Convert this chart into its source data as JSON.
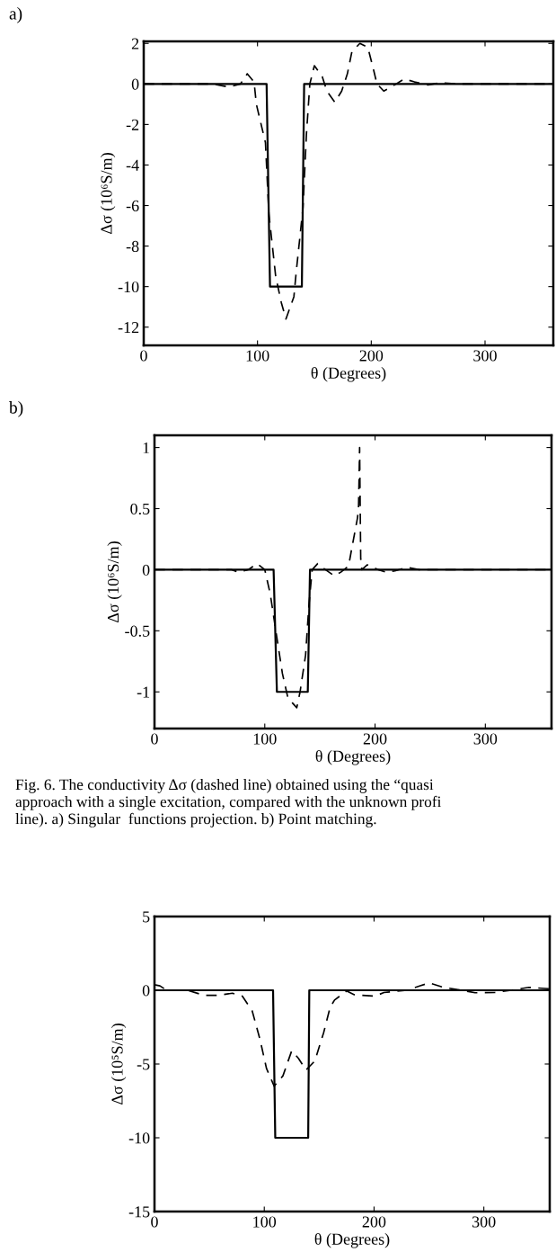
{
  "chart_data": [
    {
      "type": "line",
      "title": "a)",
      "xlabel": "θ (Degrees)",
      "ylabel": "Δσ (10⁶S/m)",
      "xlim": [
        0,
        360
      ],
      "xticks": [
        0,
        100,
        200,
        300
      ],
      "ylim": [
        -12.9,
        2.1
      ],
      "yticks": [
        -12,
        -10,
        -8,
        -6,
        -4,
        -2,
        0,
        2
      ],
      "grid": false,
      "legend": false,
      "marker": "none",
      "series": [
        {
          "color": "#000000",
          "line_style": "solid",
          "x": [
            0,
            108,
            111,
            139,
            141,
            360
          ],
          "values": [
            0,
            0,
            -10,
            -10,
            0,
            0
          ]
        },
        {
          "color": "#000000",
          "line_style": "dashed",
          "x": [
            0,
            50,
            60,
            75,
            85,
            91,
            97,
            99,
            107,
            110,
            116,
            121,
            125,
            132,
            134,
            140,
            143,
            146,
            150,
            157,
            161,
            168,
            174,
            179,
            183,
            190,
            197,
            202,
            205,
            211,
            219,
            229,
            238,
            250,
            260,
            280,
            360
          ],
          "values": [
            0,
            0,
            0,
            -0.15,
            0,
            0.5,
            0.1,
            -1,
            -2.9,
            -6.4,
            -9.5,
            -10.8,
            -11.6,
            -10.5,
            -9.3,
            -6.1,
            -2.5,
            0,
            0.9,
            0.35,
            -0.35,
            -0.9,
            -0.35,
            0.5,
            1.6,
            2.0,
            1.8,
            0.7,
            0,
            -0.35,
            -0.1,
            0.25,
            0.1,
            -0.05,
            0.05,
            0,
            0
          ]
        }
      ]
    },
    {
      "type": "line",
      "title": "b)",
      "xlabel": "θ (Degrees)",
      "ylabel": "Δσ (10⁶S/m)",
      "xlim": [
        0,
        360
      ],
      "xticks": [
        0,
        100,
        200,
        300
      ],
      "ylim": [
        -1.3,
        1.1
      ],
      "yticks": [
        -1,
        -0.5,
        0,
        0.5,
        1
      ],
      "grid": false,
      "legend": false,
      "marker": "none",
      "annotations": [
        "Fig. 6. The conductivity Δσ (dashed line) obtained using the “quasi\napproach with a single excitation, compared with the unknown profi\nline). a) Singular  functions projection. b) Point matching."
      ],
      "series": [
        {
          "color": "#000000",
          "line_style": "solid",
          "x": [
            0,
            108,
            111,
            139,
            141,
            360
          ],
          "values": [
            0,
            0,
            -1,
            -1,
            0,
            0
          ]
        },
        {
          "color": "#000000",
          "line_style": "dashed",
          "x": [
            0,
            70,
            76,
            85,
            93,
            100,
            105,
            110,
            116,
            121,
            129,
            132,
            137,
            140,
            143,
            148,
            155,
            163,
            169,
            176,
            179,
            184,
            185,
            186,
            187,
            188,
            193,
            203,
            210,
            218,
            229,
            240,
            360
          ],
          "values": [
            0,
            0,
            -0.02,
            0,
            0.05,
            0,
            -0.2,
            -0.5,
            -0.85,
            -1.05,
            -1.13,
            -1.0,
            -0.7,
            -0.29,
            0,
            0.05,
            0,
            -0.05,
            -0.02,
            0.03,
            0.18,
            0.42,
            0.5,
            1.0,
            0.09,
            0,
            0.04,
            0,
            -0.02,
            -0.01,
            0.02,
            0,
            0
          ]
        }
      ]
    },
    {
      "type": "line",
      "xlabel": "θ (Degrees)",
      "ylabel": "Δσ (10⁵S/m)",
      "xlim": [
        0,
        360
      ],
      "xticks": [
        0,
        100,
        200,
        300
      ],
      "ylim": [
        -15,
        5
      ],
      "yticks": [
        -15,
        -10,
        -5,
        0,
        5
      ],
      "grid": false,
      "legend": false,
      "marker": "none",
      "series": [
        {
          "color": "#000000",
          "line_style": "solid",
          "x": [
            0,
            108,
            110,
            140,
            141,
            360
          ],
          "values": [
            0,
            0,
            -10,
            -10,
            0,
            0
          ]
        },
        {
          "color": "#000000",
          "line_style": "dashed",
          "x": [
            0,
            5,
            11,
            30,
            45,
            58,
            71,
            80,
            89,
            96,
            102,
            109,
            117,
            125,
            131,
            138,
            146,
            154,
            160,
            164,
            175,
            182,
            201,
            209,
            230,
            242,
            250,
            263,
            280,
            292,
            310,
            325,
            341,
            360
          ],
          "values": [
            0.37,
            0.3,
            0,
            0,
            -0.34,
            -0.34,
            -0.2,
            -0.4,
            -1.4,
            -3.3,
            -5.3,
            -6.5,
            -5.8,
            -4.1,
            -4.6,
            -5.4,
            -4.8,
            -2.9,
            -1.15,
            -0.66,
            -0.05,
            -0.3,
            -0.4,
            -0.15,
            0,
            0.3,
            0.5,
            0.2,
            0,
            -0.17,
            -0.15,
            0,
            0.2,
            0.1
          ]
        }
      ]
    }
  ]
}
